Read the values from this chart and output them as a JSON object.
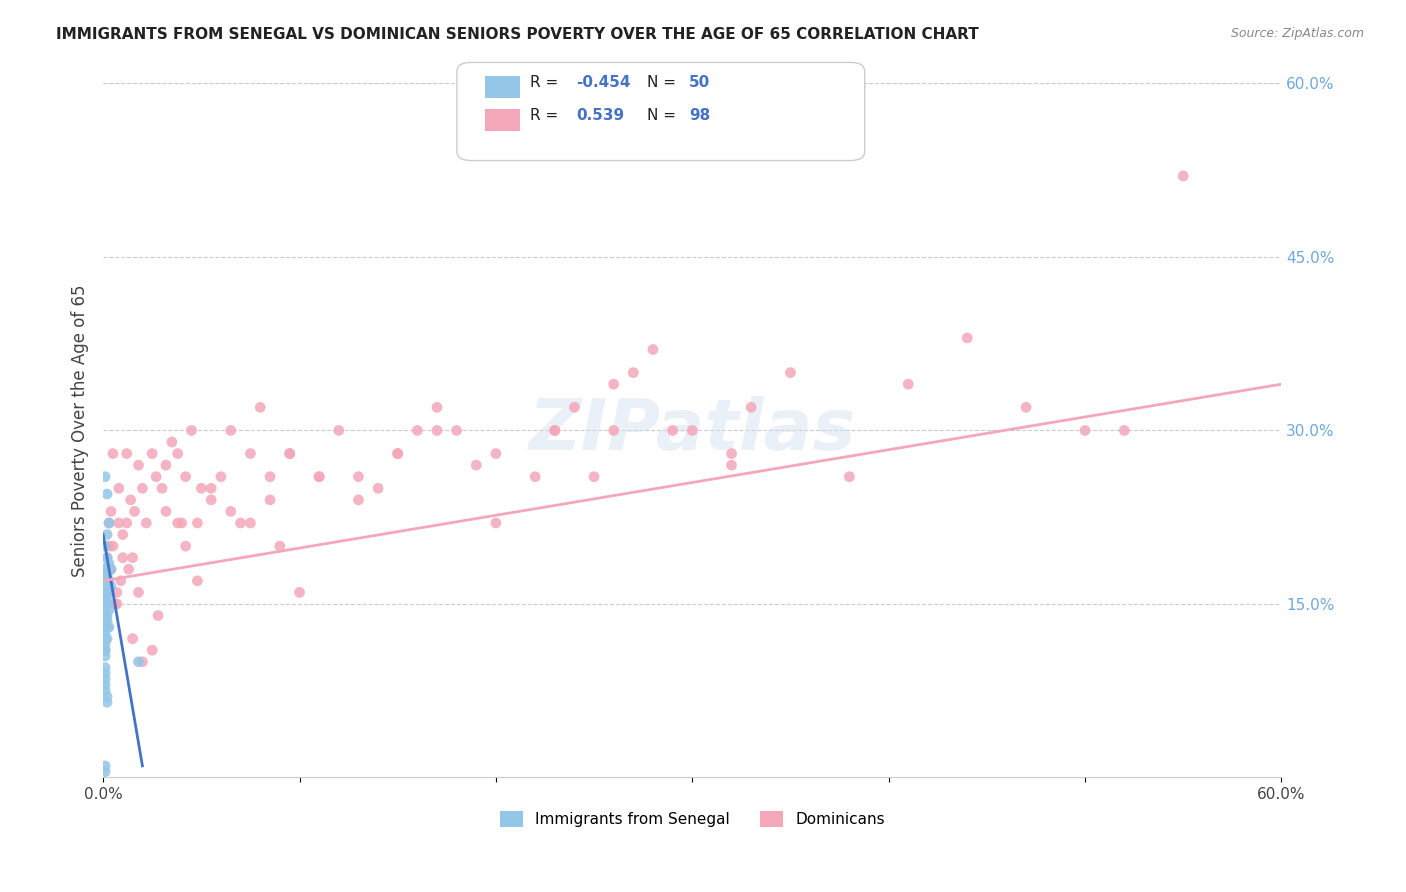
{
  "title": "IMMIGRANTS FROM SENEGAL VS DOMINICAN SENIORS POVERTY OVER THE AGE OF 65 CORRELATION CHART",
  "source": "Source: ZipAtlas.com",
  "xlabel_bottom": "",
  "ylabel": "Seniors Poverty Over the Age of 65",
  "x_min": 0.0,
  "x_max": 0.6,
  "y_min": 0.0,
  "y_max": 0.6,
  "x_ticks": [
    0.0,
    0.1,
    0.2,
    0.3,
    0.4,
    0.5,
    0.6
  ],
  "x_tick_labels": [
    "0.0%",
    "",
    "",
    "",
    "",
    "",
    "60.0%"
  ],
  "y_tick_labels_right": [
    "60.0%",
    "45.0%",
    "30.0%",
    "15.0%"
  ],
  "y_tick_positions_right": [
    0.6,
    0.45,
    0.3,
    0.15
  ],
  "watermark": "ZIPatlas",
  "legend_r1": "R = -0.454",
  "legend_n1": "N = 50",
  "legend_r2": "R =  0.539",
  "legend_n2": "N = 98",
  "color_senegal": "#93C6E7",
  "color_dominican": "#F4A7B9",
  "color_senegal_line": "#6495ED",
  "color_dominican_line": "#F4A7B9",
  "senegal_points_x": [
    0.001,
    0.002,
    0.003,
    0.002,
    0.001,
    0.002,
    0.003,
    0.004,
    0.001,
    0.001,
    0.002,
    0.003,
    0.001,
    0.002,
    0.004,
    0.002,
    0.003,
    0.001,
    0.001,
    0.002,
    0.001,
    0.002,
    0.001,
    0.001,
    0.003,
    0.001,
    0.002,
    0.001,
    0.002,
    0.001,
    0.001,
    0.002,
    0.003,
    0.001,
    0.001,
    0.002,
    0.001,
    0.001,
    0.001,
    0.001,
    0.018,
    0.001,
    0.001,
    0.001,
    0.001,
    0.001,
    0.002,
    0.002,
    0.001,
    0.001
  ],
  "senegal_points_y": [
    0.26,
    0.245,
    0.22,
    0.21,
    0.2,
    0.19,
    0.185,
    0.18,
    0.18,
    0.175,
    0.175,
    0.17,
    0.17,
    0.165,
    0.165,
    0.16,
    0.16,
    0.155,
    0.155,
    0.155,
    0.15,
    0.15,
    0.15,
    0.145,
    0.145,
    0.14,
    0.14,
    0.14,
    0.135,
    0.135,
    0.13,
    0.13,
    0.13,
    0.125,
    0.12,
    0.12,
    0.115,
    0.11,
    0.11,
    0.105,
    0.1,
    0.095,
    0.09,
    0.085,
    0.08,
    0.075,
    0.07,
    0.065,
    0.01,
    0.005
  ],
  "dominican_points_x": [
    0.001,
    0.002,
    0.003,
    0.004,
    0.005,
    0.006,
    0.007,
    0.008,
    0.009,
    0.01,
    0.012,
    0.013,
    0.014,
    0.015,
    0.016,
    0.018,
    0.02,
    0.022,
    0.025,
    0.027,
    0.03,
    0.032,
    0.035,
    0.038,
    0.04,
    0.042,
    0.045,
    0.048,
    0.05,
    0.055,
    0.06,
    0.065,
    0.07,
    0.075,
    0.08,
    0.085,
    0.09,
    0.095,
    0.1,
    0.11,
    0.12,
    0.13,
    0.14,
    0.15,
    0.16,
    0.17,
    0.18,
    0.19,
    0.2,
    0.22,
    0.23,
    0.24,
    0.25,
    0.26,
    0.27,
    0.28,
    0.3,
    0.32,
    0.33,
    0.35,
    0.002,
    0.003,
    0.004,
    0.005,
    0.007,
    0.008,
    0.01,
    0.012,
    0.015,
    0.018,
    0.02,
    0.025,
    0.028,
    0.032,
    0.038,
    0.042,
    0.048,
    0.055,
    0.065,
    0.075,
    0.085,
    0.095,
    0.11,
    0.13,
    0.15,
    0.17,
    0.2,
    0.23,
    0.26,
    0.29,
    0.32,
    0.38,
    0.41,
    0.44,
    0.47,
    0.5,
    0.52,
    0.55
  ],
  "dominican_points_y": [
    0.18,
    0.19,
    0.22,
    0.23,
    0.2,
    0.15,
    0.16,
    0.25,
    0.17,
    0.21,
    0.22,
    0.18,
    0.24,
    0.19,
    0.23,
    0.27,
    0.25,
    0.22,
    0.28,
    0.26,
    0.25,
    0.27,
    0.29,
    0.28,
    0.22,
    0.26,
    0.3,
    0.22,
    0.25,
    0.24,
    0.26,
    0.3,
    0.22,
    0.28,
    0.32,
    0.24,
    0.2,
    0.28,
    0.16,
    0.26,
    0.3,
    0.26,
    0.25,
    0.28,
    0.3,
    0.32,
    0.3,
    0.27,
    0.22,
    0.26,
    0.3,
    0.32,
    0.26,
    0.3,
    0.35,
    0.37,
    0.3,
    0.28,
    0.32,
    0.35,
    0.13,
    0.2,
    0.18,
    0.28,
    0.15,
    0.22,
    0.19,
    0.28,
    0.12,
    0.16,
    0.1,
    0.11,
    0.14,
    0.23,
    0.22,
    0.2,
    0.17,
    0.25,
    0.23,
    0.22,
    0.26,
    0.28,
    0.26,
    0.24,
    0.28,
    0.3,
    0.28,
    0.3,
    0.34,
    0.3,
    0.27,
    0.26,
    0.34,
    0.38,
    0.32,
    0.3,
    0.3,
    0.52
  ],
  "senegal_line_x": [
    0.0,
    0.02
  ],
  "senegal_line_y": [
    0.21,
    0.01
  ],
  "dominican_line_x": [
    0.0,
    0.6
  ],
  "dominican_line_y": [
    0.17,
    0.34
  ],
  "background_color": "#ffffff",
  "grid_color": "#cccccc",
  "title_color": "#222222",
  "right_label_color": "#6fa8dc",
  "source_color": "#888888"
}
